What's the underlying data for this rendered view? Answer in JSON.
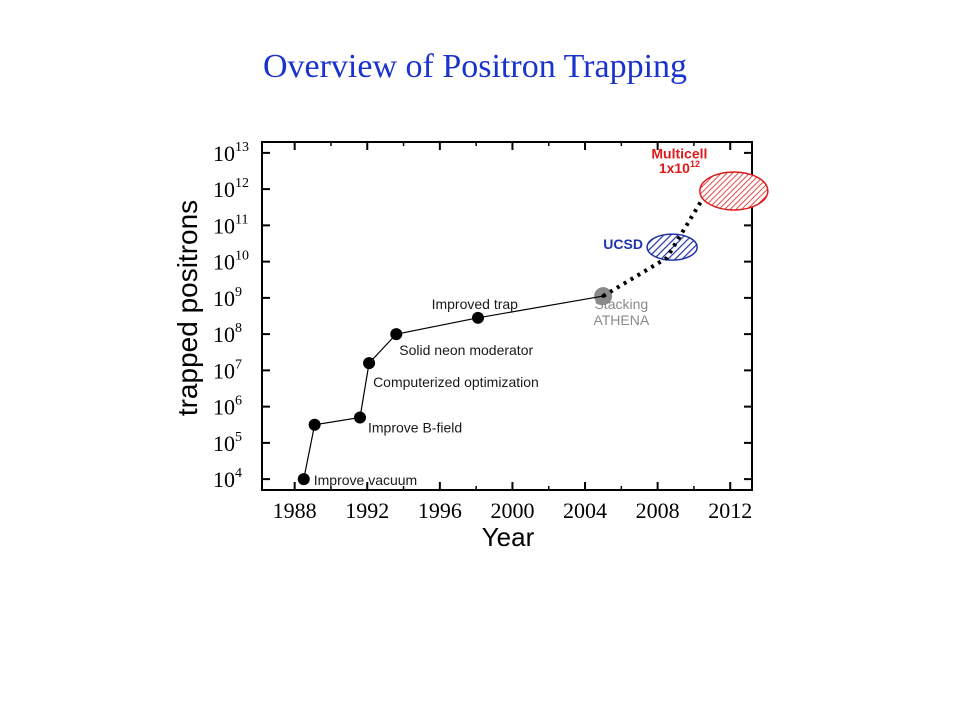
{
  "slide": {
    "title": "Overview of Positron Trapping"
  },
  "chart_data": {
    "type": "line",
    "title": "Overview of Positron Trapping",
    "xlabel": "Year",
    "ylabel": "trapped positrons",
    "xlim": [
      1986.2,
      2013.2
    ],
    "ylim": [
      3.7,
      13.3
    ],
    "y_scale": "log10",
    "x_ticks": [
      "1988",
      "1992",
      "1996",
      "2000",
      "2004",
      "2008",
      "2012"
    ],
    "x_tick_values": [
      1988,
      1992,
      1996,
      2000,
      2004,
      2008,
      2012
    ],
    "y_tick_base": "10",
    "y_tick_exponents": [
      "4",
      "5",
      "6",
      "7",
      "8",
      "9",
      "10",
      "11",
      "12",
      "13"
    ],
    "series": [
      {
        "points": [
          {
            "x": 1988.5,
            "y": 4.0,
            "label": "Improve vacuum"
          },
          {
            "x": 1989.1,
            "y": 5.5,
            "label": ""
          },
          {
            "x": 1991.6,
            "y": 5.7,
            "label": "Improve B-field"
          },
          {
            "x": 1992.1,
            "y": 7.2,
            "label": "Computerized optimization"
          },
          {
            "x": 1993.6,
            "y": 8.0,
            "label": "Solid neon moderator"
          },
          {
            "x": 1998.1,
            "y": 8.45,
            "label": "Improved trap"
          },
          {
            "x": 2005.0,
            "y": 9.05,
            "label": ""
          }
        ],
        "color": "#000000"
      },
      {
        "style": "dotted projection",
        "points": [
          {
            "x": 2005.0,
            "y": 9.05
          },
          {
            "x": 2008.5,
            "y": 10.1
          },
          {
            "x": 2010.5,
            "y": 11.75
          }
        ],
        "color": "#000000"
      }
    ],
    "annotations": [
      {
        "text": "Stacking",
        "x": 2006.0,
        "y": 8.7,
        "color": "#8a8a8a"
      },
      {
        "text": "ATHENA",
        "x": 2006.0,
        "y": 8.25,
        "color": "#8a8a8a"
      },
      {
        "text": "UCSD",
        "x": 2006.1,
        "y": 10.35,
        "color": "#2233aa"
      },
      {
        "text": "Multicell",
        "x": 2009.2,
        "y": 12.85,
        "color": "#e01a1a"
      },
      {
        "text": "1x10",
        "sup": "12",
        "x": 2009.2,
        "y": 12.45,
        "color": "#e01a1a"
      }
    ],
    "regions": [
      {
        "name": "ATHENA",
        "x": 2005.0,
        "y": 9.05,
        "color": "#8a8a8a",
        "shape": "circle"
      },
      {
        "name": "UCSD",
        "x": 2008.8,
        "y": 10.4,
        "color": "#2233aa",
        "shape": "hatched ellipse"
      },
      {
        "name": "Multicell",
        "x": 2012.2,
        "y": 11.95,
        "color": "#e01a1a",
        "shape": "hatched ellipse"
      }
    ],
    "grid": false
  }
}
